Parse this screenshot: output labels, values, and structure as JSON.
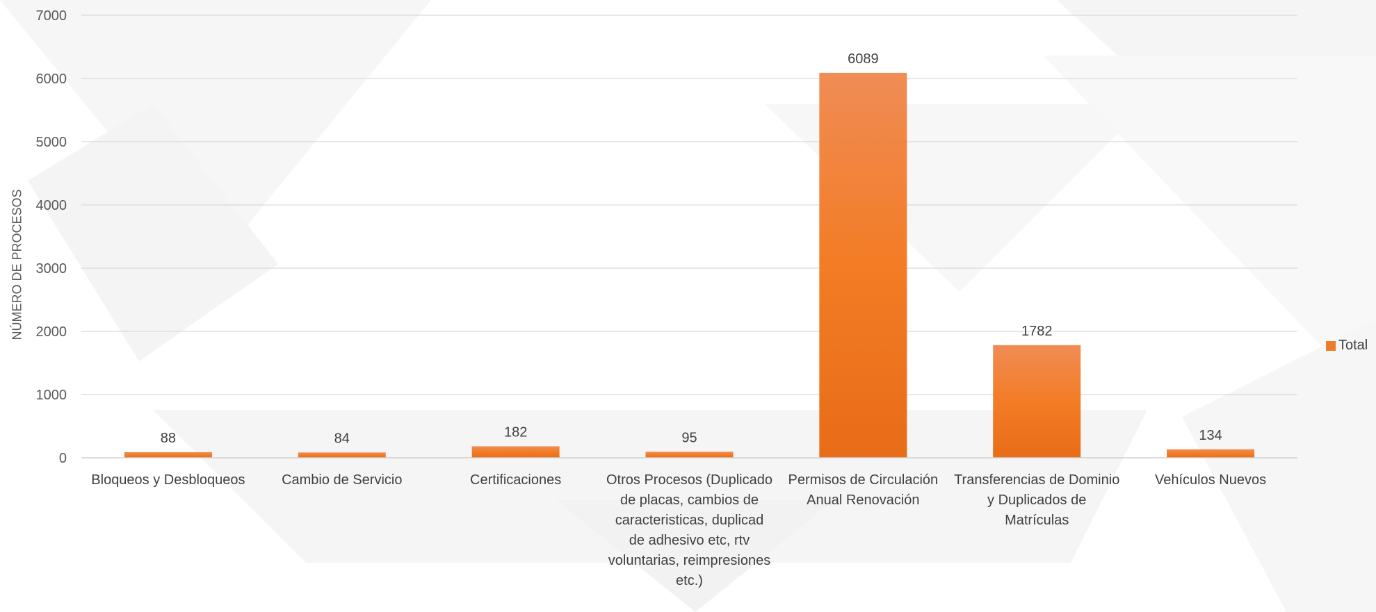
{
  "chart_data": {
    "type": "bar",
    "ylabel": "NÚMERO DE PROCESOS",
    "xlabel": "",
    "ylim": [
      0,
      7000
    ],
    "yticks": [
      0,
      1000,
      2000,
      3000,
      4000,
      5000,
      6000,
      7000
    ],
    "grid": true,
    "legend_position": "right",
    "categories": [
      "Bloqueos y Desbloqueos",
      "Cambio de Servicio",
      "Certificaciones",
      "Otros Procesos (Duplicado de placas, cambios de caracteristicas, duplicad de adhesivo etc, rtv voluntarias, reimpresiones etc.)",
      "Permisos de Circulación Anual Renovación",
      "Transferencias de Dominio y Duplicados de Matrículas",
      "Vehículos Nuevos"
    ],
    "series": [
      {
        "name": "Total",
        "values": [
          88,
          84,
          182,
          95,
          6089,
          1782,
          134
        ]
      }
    ],
    "bar_color": "#ef7b2c"
  }
}
